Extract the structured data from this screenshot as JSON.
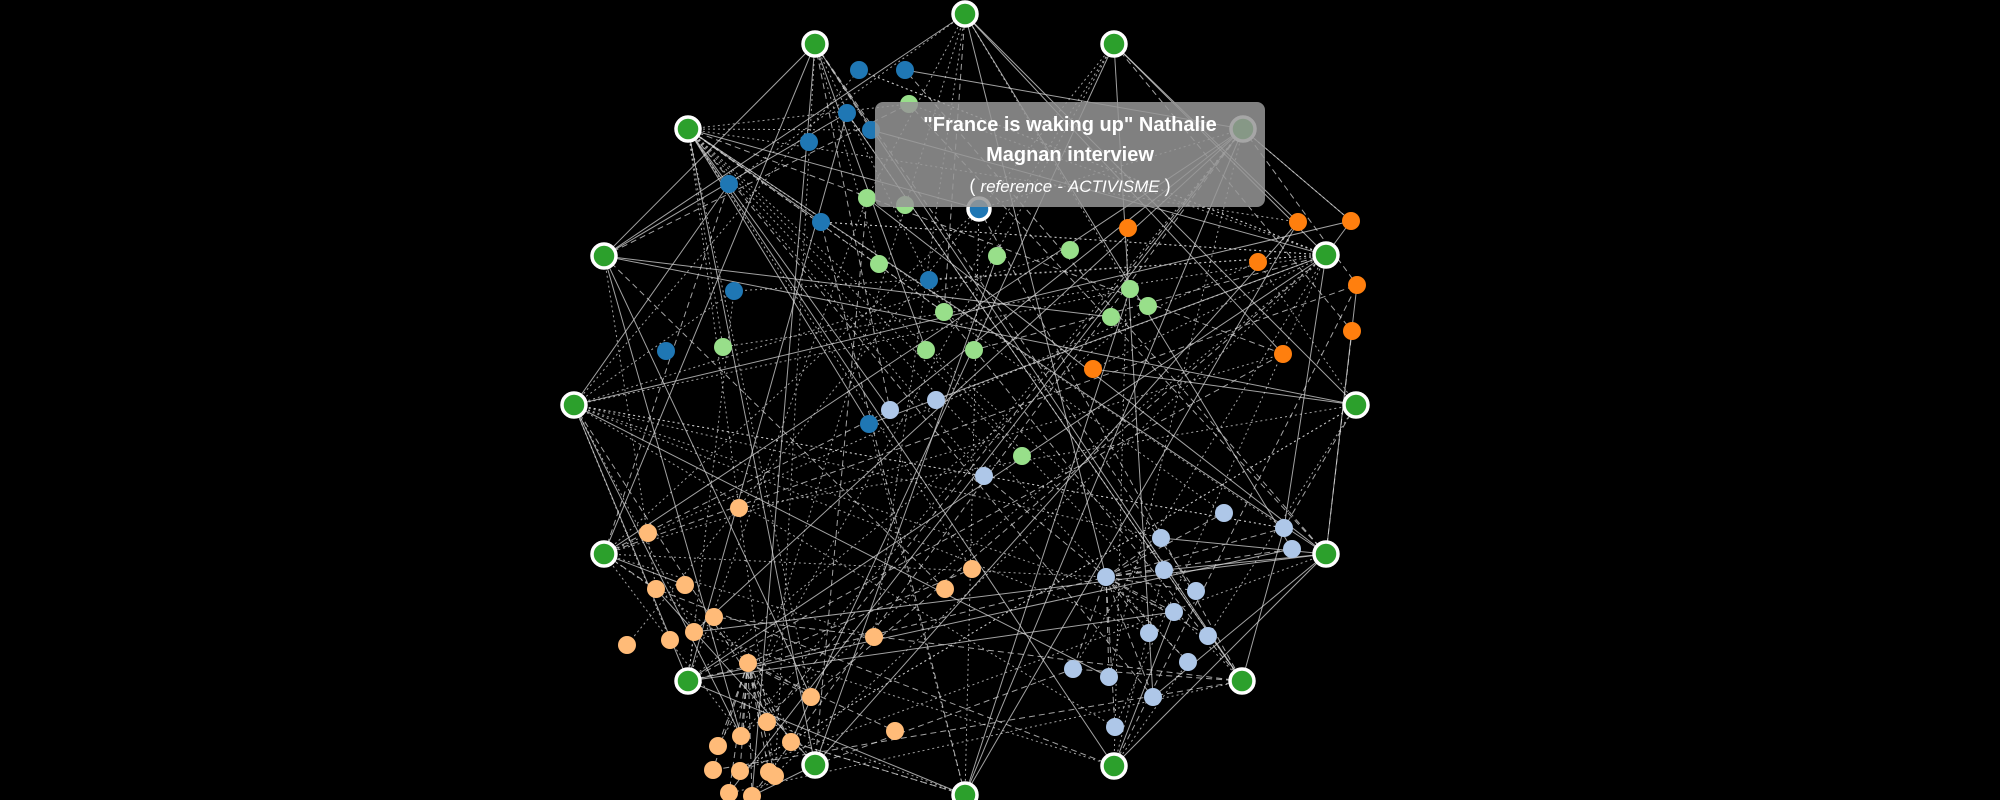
{
  "tooltip": {
    "title": "\"France is waking up\" Nathalie Magnan interview",
    "paren_open": "(",
    "type_label": "reference",
    "separator": "-",
    "category": "ACTIVISME",
    "paren_close": ")"
  },
  "colors": {
    "background": "#000000",
    "edge": "#d8d8d8",
    "hub": "#2ca02c",
    "dark_blue": "#1f77b4",
    "light_green": "#98df8a",
    "orange": "#ff7f0e",
    "light_blue": "#aec7e8",
    "light_orange": "#ffbb78"
  },
  "legend_groups": [
    "hub",
    "dark_blue",
    "light_green",
    "orange",
    "light_blue",
    "light_orange"
  ]
}
